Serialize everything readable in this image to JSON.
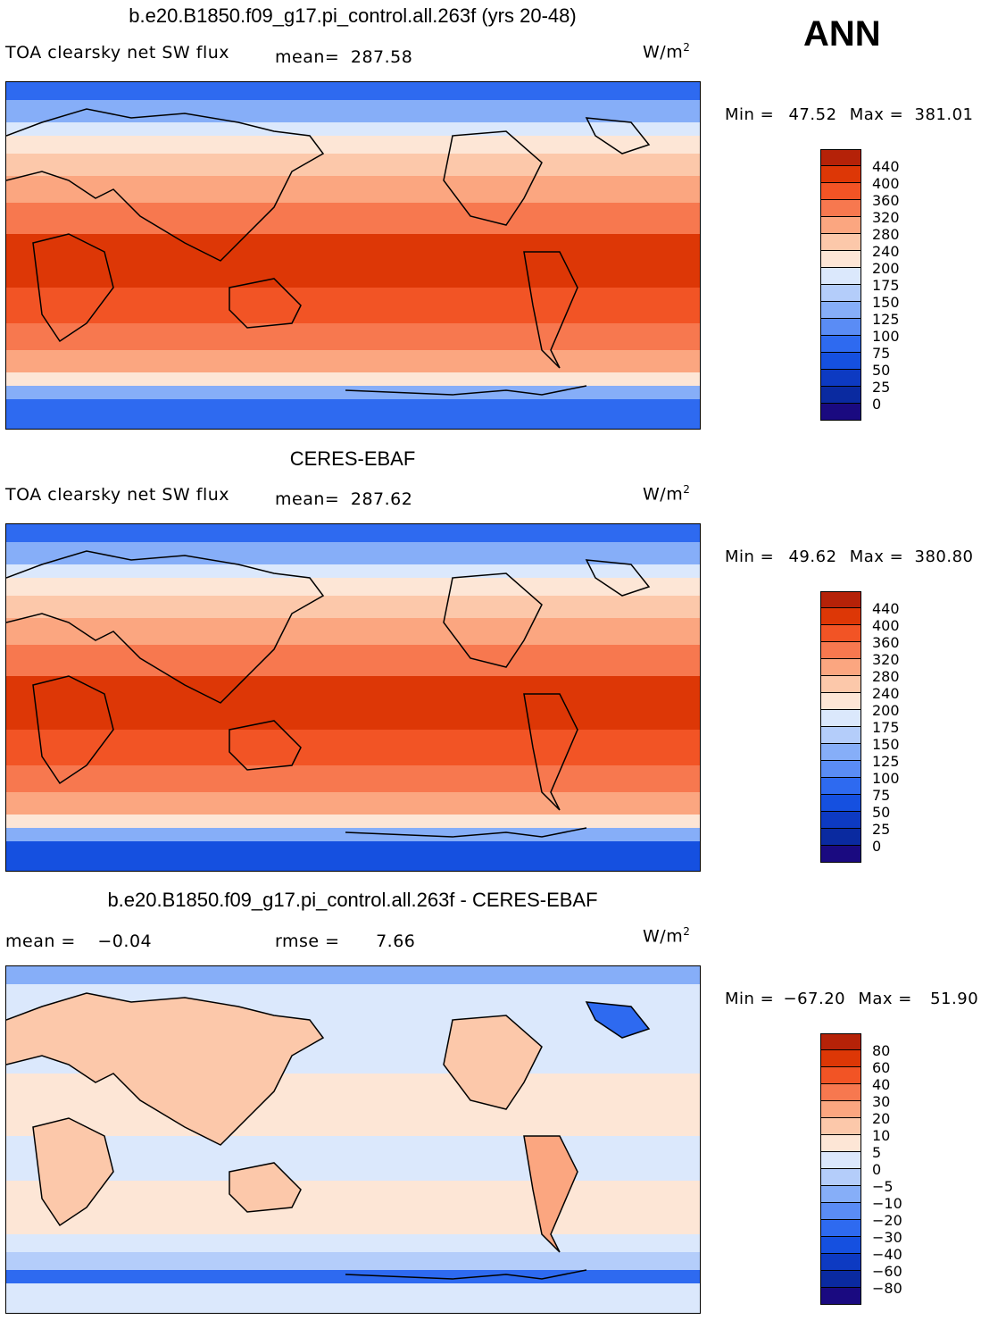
{
  "season": "ANN",
  "colors": {
    "abs_scale": [
      "#1a0a80",
      "#0a2aa0",
      "#0d3ac2",
      "#1550e0",
      "#2e6af0",
      "#5a8cf5",
      "#86aef8",
      "#b4cdfa",
      "#dbe8fc",
      "#fde6d6",
      "#fcc8aa",
      "#fba680",
      "#f7784f",
      "#f25425",
      "#dd3706",
      "#b52208",
      "#8b0f0f"
    ],
    "diff_scale": [
      "#1a0a80",
      "#0a2aa0",
      "#0d3ac2",
      "#1550e0",
      "#2e6af0",
      "#5a8cf5",
      "#86aef8",
      "#b4cdfa",
      "#dbe8fc",
      "#fde6d6",
      "#fcc8aa",
      "#fba680",
      "#f7784f",
      "#f25425",
      "#dd3706",
      "#b52208",
      "#8b0f0f"
    ]
  },
  "panels": [
    {
      "title": "b.e20.B1850.f09_g17.pi_control.all.263f (yrs 20-48)",
      "left_label": "TOA clearsky net SW flux",
      "stat_label": "mean=",
      "stat_value": "287.58",
      "units": "W/m",
      "units_sup": "2",
      "min_label": "Min =",
      "min_value": "47.52",
      "max_label": "Max =",
      "max_value": "381.01",
      "ticks": [
        "440",
        "400",
        "360",
        "320",
        "280",
        "240",
        "200",
        "175",
        "150",
        "125",
        "100",
        "75",
        "50",
        "25",
        "0"
      ]
    },
    {
      "title": "CERES-EBAF",
      "left_label": "TOA clearsky net SW flux",
      "stat_label": "mean=",
      "stat_value": "287.62",
      "units": "W/m",
      "units_sup": "2",
      "min_label": "Min =",
      "min_value": "49.62",
      "max_label": "Max =",
      "max_value": "380.80",
      "ticks": [
        "440",
        "400",
        "360",
        "320",
        "280",
        "240",
        "200",
        "175",
        "150",
        "125",
        "100",
        "75",
        "50",
        "25",
        "0"
      ]
    },
    {
      "title": "b.e20.B1850.f09_g17.pi_control.all.263f - CERES-EBAF",
      "mean_label": "mean =",
      "mean_value": "−0.04",
      "rmse_label": "rmse =",
      "rmse_value": "7.66",
      "units": "W/m",
      "units_sup": "2",
      "min_label": "Min =",
      "min_value": "−67.20",
      "max_label": "Max =",
      "max_value": "51.90",
      "ticks": [
        "80",
        "60",
        "40",
        "30",
        "20",
        "10",
        "5",
        "0",
        "−5",
        "−10",
        "−20",
        "−30",
        "−40",
        "−60",
        "−80"
      ]
    }
  ]
}
